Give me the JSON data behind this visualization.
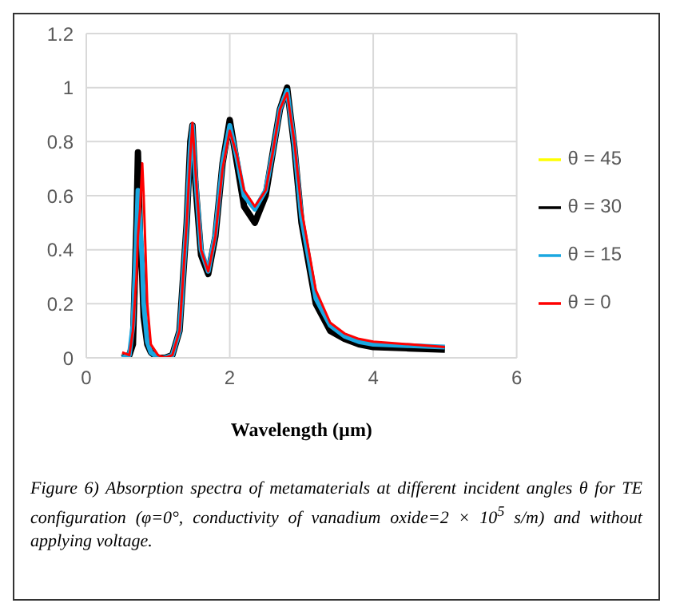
{
  "chart_data": {
    "type": "line",
    "xlabel": "Wavelength (µm)",
    "annotations": [
      "Figure 6) Absorption spectra of metamaterials at different incident angles θ for TE configuration (φ=0°, conductivity of vanadium oxide=2 × 10$^{5}$ s/m) and without applying voltage."
    ],
    "x": [
      0.5,
      0.6,
      0.65,
      0.7,
      0.72,
      0.75,
      0.78,
      0.8,
      0.85,
      0.9,
      1.0,
      1.1,
      1.2,
      1.3,
      1.4,
      1.45,
      1.48,
      1.52,
      1.6,
      1.7,
      1.8,
      1.9,
      2.0,
      2.1,
      2.2,
      2.35,
      2.5,
      2.6,
      2.7,
      2.8,
      2.9,
      3.0,
      3.2,
      3.4,
      3.6,
      3.8,
      4.0,
      4.5,
      5.0
    ],
    "series": [
      {
        "name": "θ = 45",
        "color": "#ffff00",
        "values": [
          null,
          null,
          null,
          null,
          null,
          null,
          null,
          null,
          null,
          null,
          null,
          null,
          null,
          null,
          null,
          null,
          null,
          null,
          null,
          null,
          null,
          null,
          null,
          null,
          null,
          null,
          null,
          null,
          null,
          null,
          null,
          null,
          null,
          null,
          null,
          null,
          null,
          null,
          null
        ]
      },
      {
        "name": "θ = 30",
        "color": "#000000",
        "values": [
          0.0,
          0.01,
          0.05,
          0.5,
          0.76,
          0.43,
          0.3,
          0.15,
          0.05,
          0.02,
          0.0,
          0.0,
          0.01,
          0.1,
          0.5,
          0.8,
          0.86,
          0.65,
          0.38,
          0.31,
          0.45,
          0.72,
          0.88,
          0.72,
          0.56,
          0.5,
          0.6,
          0.76,
          0.92,
          1.0,
          0.78,
          0.5,
          0.2,
          0.1,
          0.07,
          0.05,
          0.04,
          0.035,
          0.03
        ]
      },
      {
        "name": "θ = 15",
        "color": "#1aa7e0",
        "values": [
          0.0,
          0.01,
          0.12,
          0.45,
          0.62,
          0.5,
          0.35,
          0.2,
          0.06,
          0.02,
          0.0,
          0.0,
          0.01,
          0.1,
          0.5,
          0.78,
          0.86,
          0.68,
          0.4,
          0.32,
          0.46,
          0.72,
          0.86,
          0.74,
          0.6,
          0.55,
          0.62,
          0.76,
          0.92,
          0.99,
          0.79,
          0.52,
          0.22,
          0.12,
          0.08,
          0.06,
          0.05,
          0.045,
          0.04
        ]
      },
      {
        "name": "θ = 0",
        "color": "#ff0000",
        "values": [
          0.02,
          0.01,
          0.1,
          0.3,
          0.45,
          0.55,
          0.72,
          0.6,
          0.2,
          0.05,
          0.01,
          0.0,
          0.01,
          0.1,
          0.5,
          0.75,
          0.87,
          0.7,
          0.4,
          0.32,
          0.45,
          0.7,
          0.84,
          0.75,
          0.62,
          0.56,
          0.62,
          0.76,
          0.92,
          0.98,
          0.8,
          0.55,
          0.25,
          0.13,
          0.09,
          0.07,
          0.06,
          0.05,
          0.04
        ]
      }
    ],
    "xlim": [
      0,
      6
    ],
    "xticks": [
      0,
      2,
      4,
      6
    ],
    "ylim": [
      0,
      1.2
    ],
    "yticks": [
      0,
      0.2,
      0.4,
      0.6,
      0.8,
      1,
      1.2
    ],
    "grid": true,
    "legend": "right",
    "marker": "none",
    "line_style": "solid"
  }
}
